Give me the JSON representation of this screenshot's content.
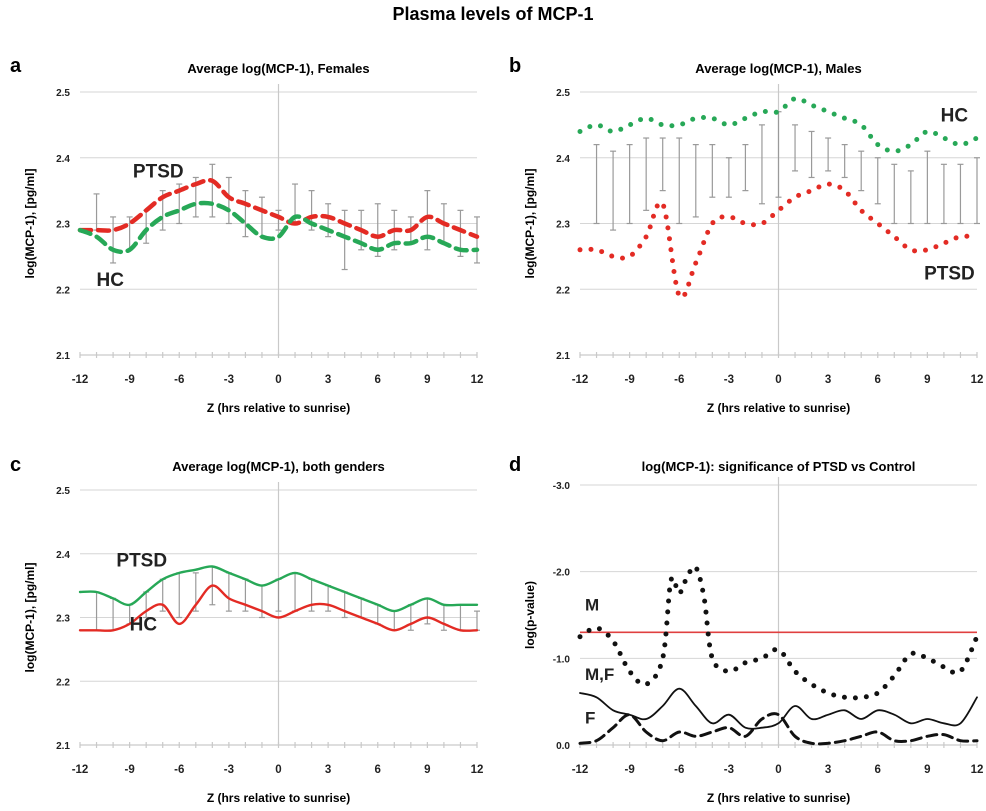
{
  "figure_title": "Plasma levels of MCP-1",
  "colors": {
    "ptsd": "#e32b24",
    "hc": "#27a857",
    "grid": "#d6d6d6",
    "sig_line": "#e04040",
    "ink": "#111111"
  },
  "chart_data": [
    {
      "panel": "a",
      "type": "line",
      "title": "Average log(MCP-1),  Females",
      "xlabel": "Z (hrs relative to sunrise)",
      "ylabel": "log(MCP-1),  [pg/ml]",
      "xlim": [
        -12,
        12
      ],
      "ylim": [
        2.1,
        2.5
      ],
      "xticks": [
        "-12",
        "-9",
        "-6",
        "-3",
        "0",
        "3",
        "6",
        "9",
        "12"
      ],
      "yticks": [
        "2.1",
        "2.2",
        "2.3",
        "2.4",
        "2.5"
      ],
      "grid": true,
      "line_style": "dashed",
      "series_labels": [
        "PTSD",
        "HC"
      ],
      "series": [
        {
          "name": "PTSD",
          "color": "#e32b24",
          "x": [
            -12,
            -11,
            -10,
            -9,
            -8,
            -7,
            -6,
            -5,
            -4,
            -3,
            -2,
            -1,
            0,
            1,
            2,
            3,
            4,
            5,
            6,
            7,
            8,
            9,
            10,
            11,
            12
          ],
          "values": [
            2.29,
            2.29,
            2.29,
            2.3,
            2.32,
            2.34,
            2.35,
            2.36,
            2.365,
            2.34,
            2.33,
            2.32,
            2.31,
            2.3,
            2.31,
            2.31,
            2.3,
            2.29,
            2.28,
            2.29,
            2.29,
            2.31,
            2.3,
            2.29,
            2.28
          ]
        },
        {
          "name": "HC",
          "color": "#27a857",
          "x": [
            -12,
            -11,
            -10,
            -9,
            -8,
            -7,
            -6,
            -5,
            -4,
            -3,
            -2,
            -1,
            0,
            1,
            2,
            3,
            4,
            5,
            6,
            7,
            8,
            9,
            10,
            11,
            12
          ],
          "values": [
            2.29,
            2.28,
            2.26,
            2.26,
            2.29,
            2.31,
            2.32,
            2.33,
            2.33,
            2.32,
            2.3,
            2.28,
            2.28,
            2.31,
            2.3,
            2.29,
            2.28,
            2.27,
            2.26,
            2.27,
            2.27,
            2.28,
            2.27,
            2.26,
            2.26
          ]
        }
      ],
      "error_bars": {
        "x": [
          -11,
          -10,
          -9,
          -8,
          -7,
          -6,
          -5,
          -4,
          -3,
          -2,
          -1,
          0,
          1,
          2,
          3,
          4,
          5,
          6,
          7,
          8,
          9,
          10,
          11,
          12
        ],
        "top": [
          2.345,
          2.31,
          2.31,
          2.32,
          2.35,
          2.36,
          2.37,
          2.39,
          2.37,
          2.35,
          2.34,
          2.32,
          2.36,
          2.35,
          2.33,
          2.32,
          2.32,
          2.33,
          2.32,
          2.31,
          2.35,
          2.33,
          2.32,
          2.31
        ],
        "bottom": [
          2.29,
          2.24,
          2.26,
          2.27,
          2.29,
          2.3,
          2.31,
          2.31,
          2.3,
          2.28,
          2.28,
          2.29,
          2.3,
          2.29,
          2.28,
          2.23,
          2.26,
          2.25,
          2.26,
          2.27,
          2.26,
          2.27,
          2.25,
          2.24
        ]
      }
    },
    {
      "panel": "b",
      "type": "line",
      "title": "Average log(MCP-1),  Males",
      "xlabel": "Z (hrs relative to sunrise)",
      "ylabel": "log(MCP-1),  [pg/ml]",
      "xlim": [
        -12,
        12
      ],
      "ylim": [
        2.1,
        2.5
      ],
      "xticks": [
        "-12",
        "-9",
        "-6",
        "-3",
        "0",
        "3",
        "6",
        "9",
        "12"
      ],
      "yticks": [
        "2.1",
        "2.2",
        "2.3",
        "2.4",
        "2.5"
      ],
      "grid": true,
      "line_style": "dotted",
      "series_labels": [
        "HC",
        "PTSD"
      ],
      "series": [
        {
          "name": "HC",
          "color": "#27a857",
          "x": [
            -12,
            -11,
            -10,
            -9,
            -8,
            -7,
            -6,
            -5,
            -4,
            -3,
            -2,
            -1,
            0,
            1,
            2,
            3,
            4,
            5,
            6,
            7,
            8,
            9,
            10,
            11,
            12
          ],
          "values": [
            2.44,
            2.45,
            2.44,
            2.45,
            2.46,
            2.45,
            2.45,
            2.46,
            2.46,
            2.45,
            2.46,
            2.47,
            2.47,
            2.49,
            2.48,
            2.47,
            2.46,
            2.45,
            2.42,
            2.41,
            2.42,
            2.44,
            2.43,
            2.42,
            2.43
          ]
        },
        {
          "name": "PTSD",
          "color": "#e32b24",
          "x": [
            -12,
            -11,
            -10,
            -9,
            -8,
            -7,
            -6,
            -5,
            -4,
            -3,
            -2,
            -1,
            0,
            1,
            2,
            3,
            4,
            5,
            6,
            7,
            8,
            9,
            10,
            11,
            12
          ],
          "values": [
            2.26,
            2.26,
            2.25,
            2.25,
            2.28,
            2.33,
            2.19,
            2.24,
            2.3,
            2.31,
            2.3,
            2.3,
            2.32,
            2.34,
            2.35,
            2.36,
            2.35,
            2.32,
            2.3,
            2.28,
            2.26,
            2.26,
            2.27,
            2.28,
            2.28
          ]
        }
      ],
      "error_bars": {
        "x": [
          -11,
          -10,
          -9,
          -8,
          -7,
          -6,
          -5,
          -4,
          -3,
          -2,
          -1,
          0,
          1,
          2,
          3,
          4,
          5,
          6,
          7,
          8,
          9,
          10,
          11,
          12
        ],
        "top": [
          2.3,
          2.29,
          2.3,
          2.32,
          2.35,
          2.3,
          2.31,
          2.34,
          2.34,
          2.35,
          2.33,
          2.34,
          2.38,
          2.37,
          2.38,
          2.37,
          2.35,
          2.33,
          2.3,
          2.3,
          2.3,
          2.3,
          2.3,
          2.3
        ],
        "bottom": [
          2.42,
          2.41,
          2.42,
          2.43,
          2.43,
          2.43,
          2.42,
          2.42,
          2.4,
          2.42,
          2.45,
          2.47,
          2.45,
          2.44,
          2.43,
          2.42,
          2.41,
          2.4,
          2.39,
          2.38,
          2.41,
          2.39,
          2.39,
          2.4
        ]
      }
    },
    {
      "panel": "c",
      "type": "line",
      "title": "Average log(MCP-1),  both genders",
      "xlabel": "Z (hrs relative to sunrise)",
      "ylabel": "log(MCP-1),  [pg/ml]",
      "xlim": [
        -12,
        12
      ],
      "ylim": [
        2.1,
        2.5
      ],
      "xticks": [
        "-12",
        "-9",
        "-6",
        "-3",
        "0",
        "3",
        "6",
        "9",
        "12"
      ],
      "yticks": [
        "2.1",
        "2.2",
        "2.3",
        "2.4",
        "2.5"
      ],
      "grid": true,
      "line_style": "solid",
      "series_labels": [
        "PTSD",
        "HC"
      ],
      "series": [
        {
          "name": "PTSD",
          "color": "#27a857",
          "x": [
            -12,
            -11,
            -10,
            -9,
            -8,
            -7,
            -6,
            -5,
            -4,
            -3,
            -2,
            -1,
            0,
            1,
            2,
            3,
            4,
            5,
            6,
            7,
            8,
            9,
            10,
            11,
            12
          ],
          "values": [
            2.34,
            2.34,
            2.33,
            2.32,
            2.34,
            2.36,
            2.37,
            2.375,
            2.38,
            2.37,
            2.36,
            2.35,
            2.36,
            2.37,
            2.36,
            2.35,
            2.34,
            2.33,
            2.32,
            2.31,
            2.32,
            2.33,
            2.32,
            2.32,
            2.32
          ]
        },
        {
          "name": "HC",
          "color": "#e32b24",
          "x": [
            -12,
            -11,
            -10,
            -9,
            -8,
            -7,
            -6,
            -5,
            -4,
            -3,
            -2,
            -1,
            0,
            1,
            2,
            3,
            4,
            5,
            6,
            7,
            8,
            9,
            10,
            11,
            12
          ],
          "values": [
            2.28,
            2.28,
            2.28,
            2.29,
            2.31,
            2.32,
            2.29,
            2.32,
            2.35,
            2.33,
            2.32,
            2.31,
            2.3,
            2.31,
            2.32,
            2.32,
            2.31,
            2.3,
            2.29,
            2.28,
            2.29,
            2.3,
            2.29,
            2.28,
            2.28
          ]
        }
      ],
      "error_bars": {
        "x": [
          -11,
          -10,
          -9,
          -8,
          -7,
          -6,
          -5,
          -4,
          -3,
          -2,
          -1,
          0,
          1,
          2,
          3,
          4,
          5,
          6,
          7,
          8,
          9,
          10,
          11,
          12
        ],
        "top": [
          2.34,
          2.33,
          2.32,
          2.34,
          2.36,
          2.37,
          2.37,
          2.38,
          2.37,
          2.36,
          2.35,
          2.36,
          2.37,
          2.36,
          2.35,
          2.34,
          2.33,
          2.32,
          2.31,
          2.32,
          2.33,
          2.32,
          2.32,
          2.31
        ],
        "bottom": [
          2.28,
          2.28,
          2.29,
          2.3,
          2.31,
          2.3,
          2.31,
          2.32,
          2.31,
          2.31,
          2.3,
          2.31,
          2.31,
          2.31,
          2.31,
          2.3,
          2.3,
          2.29,
          2.28,
          2.28,
          2.29,
          2.28,
          2.28,
          2.28
        ]
      }
    },
    {
      "panel": "d",
      "type": "line",
      "title": "log(MCP-1): significance of PTSD vs Control",
      "xlabel": "Z (hrs relative to sunrise)",
      "ylabel": "log(p-value)",
      "xlim": [
        -12,
        12
      ],
      "ylim": [
        0.0,
        -3.0
      ],
      "xticks": [
        "-12",
        "-9",
        "-6",
        "-3",
        "0",
        "3",
        "6",
        "9",
        "12"
      ],
      "yticks": [
        "0.0",
        "-1.0",
        "-2.0",
        "-3.0"
      ],
      "grid": true,
      "threshold": {
        "y": -1.3,
        "color": "#e04040"
      },
      "series_labels": [
        "M",
        "M,F",
        "F"
      ],
      "series": [
        {
          "name": "M",
          "style": "dotted",
          "x": [
            -12,
            -11,
            -10,
            -9,
            -8,
            -7,
            -6.5,
            -6,
            -5.5,
            -5,
            -4.5,
            -4,
            -3,
            -2,
            -1,
            0,
            1,
            2,
            3,
            4,
            5,
            6,
            7,
            8,
            9,
            10,
            11,
            12
          ],
          "values": [
            -1.25,
            -1.35,
            -1.2,
            -0.85,
            -0.7,
            -1.0,
            -1.9,
            -1.75,
            -1.95,
            -2.05,
            -1.7,
            -1.0,
            -0.85,
            -0.95,
            -1.0,
            -1.1,
            -0.85,
            -0.7,
            -0.6,
            -0.55,
            -0.55,
            -0.6,
            -0.8,
            -1.05,
            -1.0,
            -0.9,
            -0.85,
            -1.25
          ]
        },
        {
          "name": "M,F",
          "style": "solid",
          "x": [
            -12,
            -11,
            -10,
            -9,
            -8,
            -7,
            -6,
            -5,
            -4,
            -3,
            -2,
            -1,
            0,
            1,
            2,
            3,
            4,
            5,
            6,
            7,
            8,
            9,
            10,
            11,
            12
          ],
          "values": [
            -0.6,
            -0.55,
            -0.4,
            -0.35,
            -0.3,
            -0.45,
            -0.65,
            -0.45,
            -0.25,
            -0.35,
            -0.2,
            -0.2,
            -0.25,
            -0.45,
            -0.3,
            -0.35,
            -0.4,
            -0.3,
            -0.4,
            -0.35,
            -0.25,
            -0.3,
            -0.25,
            -0.25,
            -0.55
          ]
        },
        {
          "name": "F",
          "style": "dashed",
          "x": [
            -12,
            -11,
            -10,
            -9,
            -8,
            -7,
            -6,
            -5,
            -4,
            -3,
            -2,
            -1,
            0,
            1,
            2,
            3,
            4,
            5,
            6,
            7,
            8,
            9,
            10,
            11,
            12
          ],
          "values": [
            -0.02,
            -0.05,
            -0.2,
            -0.35,
            -0.15,
            -0.05,
            -0.15,
            -0.1,
            -0.15,
            -0.2,
            -0.1,
            -0.3,
            -0.35,
            -0.1,
            -0.02,
            -0.02,
            -0.05,
            -0.1,
            -0.15,
            -0.05,
            -0.05,
            -0.1,
            -0.12,
            -0.05,
            -0.05
          ]
        }
      ]
    }
  ]
}
